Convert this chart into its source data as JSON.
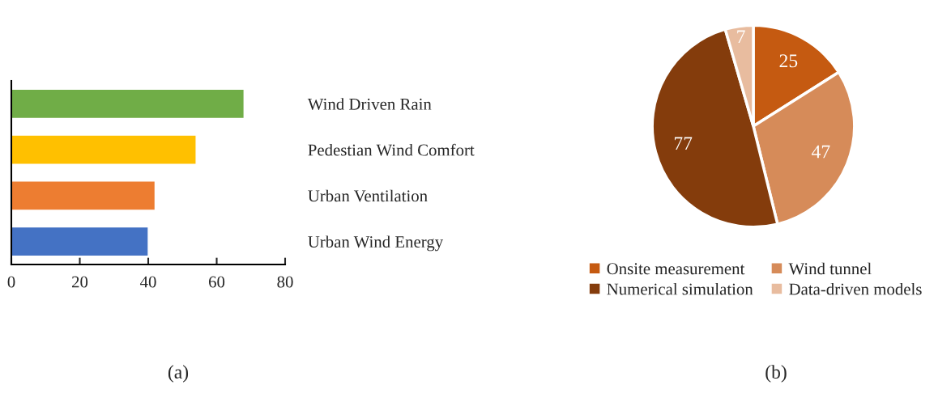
{
  "chart_data": [
    {
      "type": "bar",
      "orientation": "horizontal",
      "categories": [
        "Wind Driven Rain",
        "Pedestian Wind Comfort",
        "Urban Ventilation",
        "Urban Wind Energy"
      ],
      "values": [
        68,
        54,
        42,
        40
      ],
      "colors": [
        "#70ad47",
        "#ffc000",
        "#ed7d31",
        "#4472c4"
      ],
      "xlim": [
        0,
        80
      ],
      "xticks": [
        0,
        20,
        40,
        60,
        80
      ],
      "grid": false,
      "annotations": [
        "(a)"
      ]
    },
    {
      "type": "pie",
      "categories": [
        "Onsite measurement",
        "Wind tunnel",
        "Numerical simulation",
        "Data-driven models"
      ],
      "values": [
        25,
        47,
        77,
        7
      ],
      "colors": [
        "#c55a11",
        "#d68b59",
        "#843c0c",
        "#e8bc9f"
      ],
      "data_labels": true,
      "legend": "bottom",
      "annotations": [
        "(b)"
      ]
    }
  ]
}
